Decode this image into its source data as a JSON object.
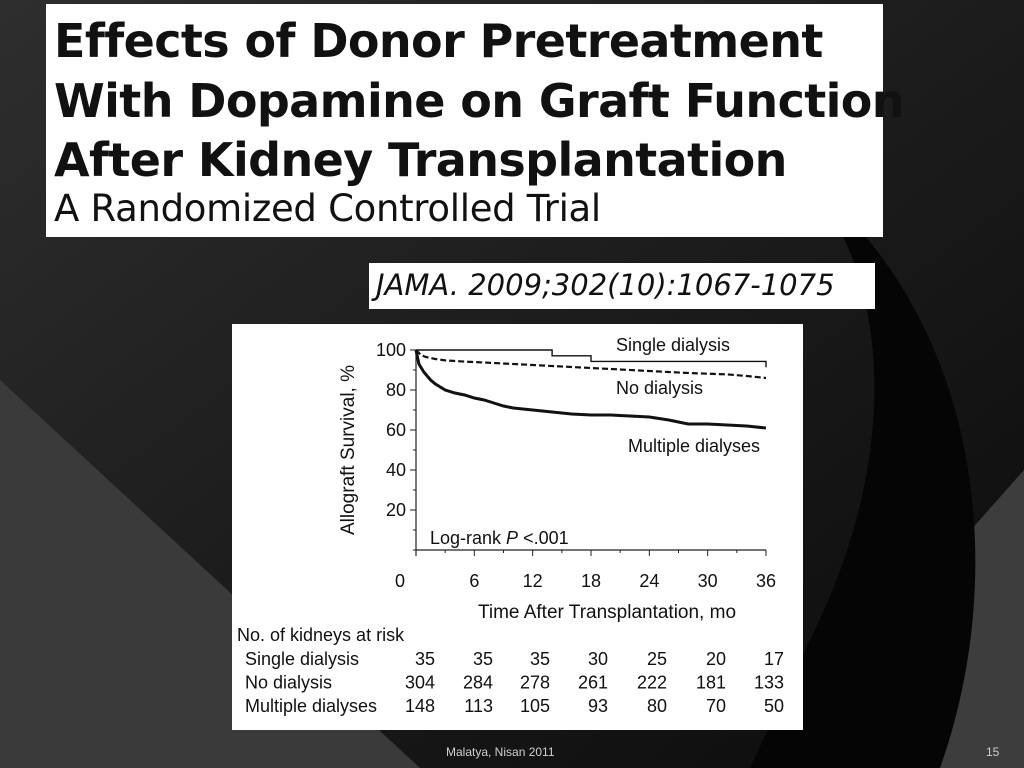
{
  "slide": {
    "title_lines": [
      "Effects of Donor Pretreatment",
      "With Dopamine on Graft Function",
      "After Kidney Transplantation"
    ],
    "subtitle": "A Randomized Controlled Trial",
    "citation": "JAMA. 2009;302(10):1067-1075",
    "footer_center": "Malatya, Nisan 2011",
    "page_number": "15",
    "colors": {
      "background": "#000000",
      "panel": "#ffffff",
      "text": "#111111",
      "footer": "#cfcfcf"
    }
  },
  "chart_data": {
    "type": "line",
    "title": "",
    "xlabel": "Time After Transplantation, mo",
    "ylabel": "Allograft Survival, %",
    "xlim": [
      0,
      36
    ],
    "ylim": [
      0,
      100
    ],
    "x_ticks": [
      0,
      6,
      12,
      18,
      24,
      30,
      36
    ],
    "y_ticks": [
      20,
      40,
      60,
      80,
      100
    ],
    "annotation": {
      "prefix": "Log-rank ",
      "p_symbol": "P",
      "suffix": " <.001"
    },
    "legend": "inline labels at right",
    "series": [
      {
        "name": "Single dialysis",
        "style": "thin-solid",
        "points": [
          [
            0,
            100
          ],
          [
            14,
            100
          ],
          [
            14,
            97.1
          ],
          [
            18,
            97.1
          ],
          [
            18,
            94.3
          ],
          [
            36,
            94.3
          ],
          [
            36,
            91.4
          ]
        ]
      },
      {
        "name": "No dialysis",
        "style": "dashed",
        "points": [
          [
            0,
            100
          ],
          [
            0.5,
            97.5
          ],
          [
            1,
            96.5
          ],
          [
            2,
            95.5
          ],
          [
            3,
            94.8
          ],
          [
            5,
            94.2
          ],
          [
            8,
            93.5
          ],
          [
            12,
            92.5
          ],
          [
            16,
            91.5
          ],
          [
            20,
            90.5
          ],
          [
            24,
            89.5
          ],
          [
            28,
            88.5
          ],
          [
            32,
            87.8
          ],
          [
            34,
            87.0
          ],
          [
            36,
            86.0
          ]
        ]
      },
      {
        "name": "Multiple dialyses",
        "style": "thick-solid",
        "points": [
          [
            0,
            100
          ],
          [
            0.3,
            93
          ],
          [
            0.8,
            89
          ],
          [
            1.5,
            85
          ],
          [
            2,
            83
          ],
          [
            3,
            80
          ],
          [
            4,
            78.5
          ],
          [
            5,
            77.5
          ],
          [
            6,
            76
          ],
          [
            7,
            75
          ],
          [
            8,
            73.5
          ],
          [
            9,
            72
          ],
          [
            10,
            71
          ],
          [
            12,
            70
          ],
          [
            14,
            69
          ],
          [
            16,
            68
          ],
          [
            18,
            67.5
          ],
          [
            20,
            67.5
          ],
          [
            22,
            67
          ],
          [
            24,
            66.5
          ],
          [
            26,
            65
          ],
          [
            27,
            64
          ],
          [
            28,
            63
          ],
          [
            30,
            63
          ],
          [
            32,
            62.5
          ],
          [
            34,
            62
          ],
          [
            36,
            61
          ]
        ]
      }
    ],
    "risk_table": {
      "header": "No. of kidneys at risk",
      "rows": [
        {
          "label": "Single dialysis",
          "values": [
            35,
            35,
            35,
            30,
            25,
            20,
            17
          ]
        },
        {
          "label": "No dialysis",
          "values": [
            304,
            284,
            278,
            261,
            222,
            181,
            133
          ]
        },
        {
          "label": "Multiple dialyses",
          "values": [
            148,
            113,
            105,
            93,
            80,
            70,
            50
          ]
        }
      ]
    }
  }
}
